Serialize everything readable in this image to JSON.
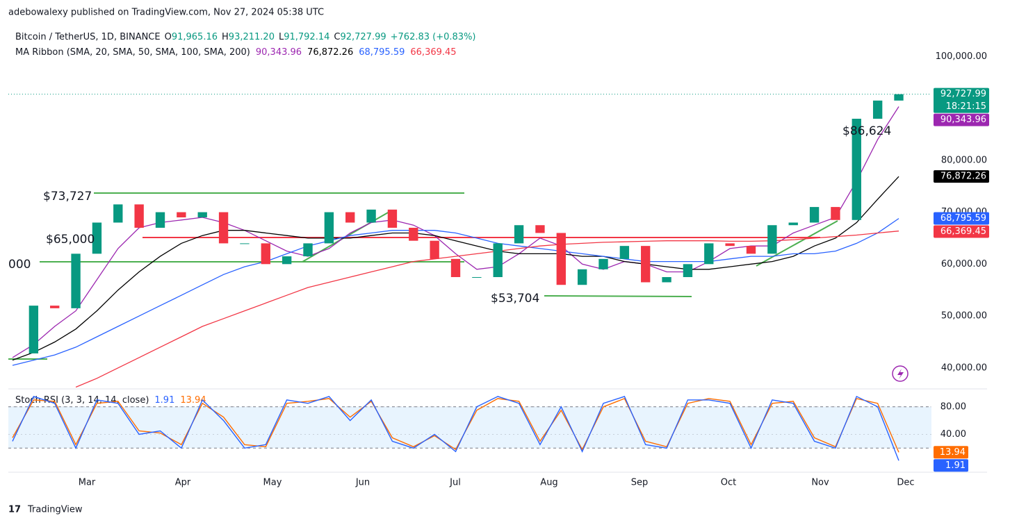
{
  "header": {
    "publisher": "adebowalexy published on TradingView.com, Nov 27, 2024 05:38 UTC",
    "footer_brand": "TradingView"
  },
  "chart_data": {
    "type": "candlestick",
    "symbol": "Bitcoin / TetherUS, 1D, BINANCE",
    "ohlc": [
      {
        "label": "O",
        "value": 91965.16,
        "value_label": "91,965.16"
      },
      {
        "label": "H",
        "value": 93211.2,
        "value_label": "93,211.20"
      },
      {
        "label": "L",
        "value": 91792.14,
        "value_label": "91,792.14"
      },
      {
        "label": "C",
        "value": 92727.99,
        "value_label": "92,727.99"
      }
    ],
    "change": "+762.83 (+0.83%)",
    "price": {
      "up_color": "#089981",
      "down_color": "#f23645",
      "last_label": "92,727.99",
      "countdown": "18:21:15",
      "values": [
        42800,
        52000,
        51500,
        62000,
        68000,
        71500,
        67000,
        70000,
        69000,
        70000,
        64000,
        64000,
        60000,
        61500,
        64000,
        70000,
        68000,
        70500,
        67000,
        64500,
        61000,
        57500,
        57500,
        64000,
        67500,
        66000,
        56000,
        59000,
        61000,
        63500,
        56500,
        57500,
        60000,
        64000,
        63500,
        62000,
        67500,
        68000,
        71000,
        68500,
        88000,
        91500,
        92727.99
      ]
    },
    "ma_title": "MA Ribbon (SMA, 20, SMA, 50, SMA, 100, SMA, 200)",
    "series": [
      {
        "color": "#9c27b0",
        "last_label": "90,343.96",
        "values": [
          42000,
          44500,
          48000,
          51000,
          57000,
          63000,
          67000,
          68000,
          68500,
          69000,
          68000,
          66500,
          64500,
          62500,
          61500,
          63000,
          66000,
          68000,
          68500,
          67500,
          65500,
          62000,
          59000,
          59500,
          62000,
          65000,
          63500,
          60000,
          59000,
          60500,
          60000,
          58500,
          58500,
          60500,
          63000,
          63500,
          63500,
          66000,
          67500,
          69000,
          76000,
          84000,
          90343.96
        ]
      },
      {
        "color": "#000000",
        "last_label": "76,872.26",
        "values": [
          41500,
          43000,
          45000,
          47500,
          51000,
          55000,
          58500,
          61500,
          64000,
          65500,
          66500,
          66500,
          66000,
          65500,
          65000,
          65000,
          65000,
          65500,
          66000,
          66000,
          65500,
          64500,
          63500,
          62500,
          62000,
          62000,
          62000,
          61500,
          61500,
          60500,
          60000,
          59500,
          59000,
          59000,
          59500,
          60000,
          60500,
          61500,
          63500,
          65000,
          68000,
          72500,
          76872.26
        ]
      },
      {
        "color": "#2962ff",
        "last_label": "68,795.59",
        "values": [
          40500,
          41500,
          42500,
          44000,
          46000,
          48000,
          50000,
          52000,
          54000,
          56000,
          58000,
          59500,
          60500,
          62000,
          63500,
          64500,
          65500,
          66000,
          66500,
          66500,
          66500,
          66000,
          65000,
          64000,
          63500,
          63000,
          62500,
          62000,
          61500,
          61000,
          60500,
          60500,
          60500,
          60500,
          61000,
          61500,
          61500,
          62000,
          62000,
          62500,
          64000,
          66000,
          68795.59
        ]
      },
      {
        "color": "#f23645",
        "last_label": "66,369.45",
        "values": [
          null,
          null,
          null,
          36300,
          38000,
          40000,
          42000,
          44000,
          46000,
          48000,
          49500,
          51000,
          52500,
          54000,
          55500,
          56500,
          57500,
          58500,
          59500,
          60500,
          61000,
          61500,
          62000,
          62500,
          63000,
          63500,
          63800,
          64000,
          64200,
          64300,
          64400,
          64500,
          64500,
          64500,
          64400,
          64400,
          64500,
          64700,
          65000,
          65300,
          65600,
          66000,
          66369.45
        ]
      }
    ],
    "ylim": [
      36233,
      106190
    ],
    "yticks": [
      {
        "value": 40000,
        "label": "40,000.00"
      },
      {
        "value": 50000,
        "label": "50,000.00"
      },
      {
        "value": 60000,
        "label": "60,000.00"
      },
      {
        "value": 70000,
        "label": "70,000.00"
      },
      {
        "value": 80000,
        "label": "80,000.00"
      },
      {
        "value": 100000,
        "label": "100,000.00"
      }
    ],
    "xticks": [
      "Mar",
      "Apr",
      "May",
      "Jun",
      "Jul",
      "Aug",
      "Sep",
      "Oct",
      "Nov",
      "Dec"
    ],
    "annotations": [
      "$73,727",
      "$65,000",
      "000",
      "$53,704",
      "$86,624"
    ],
    "oscillator": {
      "title": "Stoch RSI (3, 3, 14, 14, close)",
      "ylim": [
        -15,
        104
      ],
      "yticks": [
        {
          "value": 80,
          "label": "80.00"
        },
        {
          "value": 40,
          "label": "40.00"
        }
      ],
      "band": [
        20,
        80
      ],
      "series": [
        {
          "color": "#2962ff",
          "last_label": "1.91",
          "values": [
            30,
            95,
            85,
            20,
            90,
            85,
            40,
            45,
            20,
            90,
            60,
            20,
            25,
            90,
            85,
            95,
            60,
            90,
            30,
            20,
            40,
            15,
            80,
            95,
            85,
            25,
            80,
            15,
            85,
            95,
            25,
            20,
            90,
            90,
            85,
            20,
            90,
            85,
            30,
            20,
            95,
            80,
            1.91
          ]
        },
        {
          "color": "#ff6d00",
          "last_label": "13.94",
          "values": [
            35,
            90,
            88,
            25,
            85,
            88,
            45,
            42,
            25,
            85,
            65,
            25,
            22,
            85,
            88,
            92,
            65,
            88,
            35,
            22,
            38,
            18,
            75,
            92,
            88,
            30,
            75,
            18,
            80,
            92,
            30,
            22,
            85,
            92,
            88,
            25,
            85,
            88,
            35,
            22,
            92,
            85,
            13.94
          ]
        }
      ]
    }
  }
}
